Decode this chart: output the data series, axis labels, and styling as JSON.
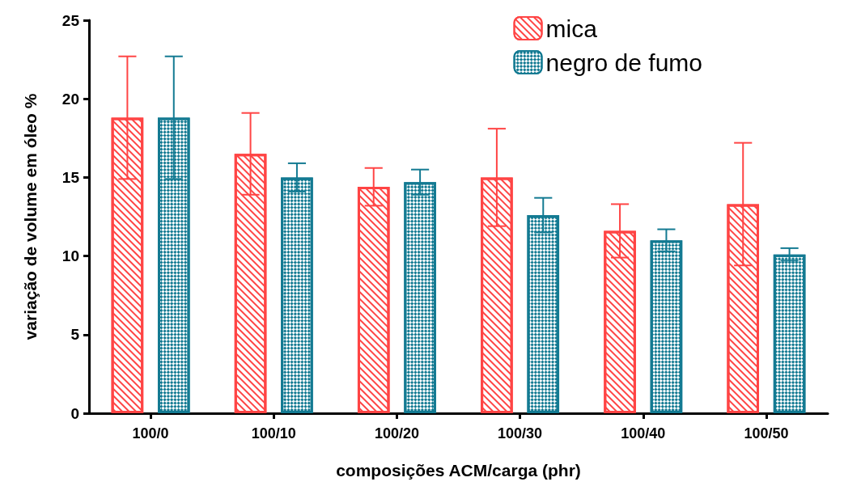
{
  "chart_data": {
    "type": "bar",
    "xlabel": "composições ACM/carga (phr)",
    "ylabel": "variação de volume em óleo %",
    "categories": [
      "100/0",
      "100/10",
      "100/20",
      "100/30",
      "100/40",
      "100/50"
    ],
    "series": [
      {
        "name": "mica",
        "color": "#ff4444",
        "values": [
          18.8,
          16.5,
          14.4,
          15.0,
          11.6,
          13.3
        ],
        "errors": [
          3.9,
          2.6,
          1.2,
          3.1,
          1.7,
          3.9
        ]
      },
      {
        "name": "negro de fumo",
        "color": "#137a92",
        "values": [
          18.8,
          15.0,
          14.7,
          12.6,
          11.0,
          10.1
        ],
        "errors": [
          3.9,
          0.9,
          0.8,
          1.1,
          0.7,
          0.4
        ]
      }
    ],
    "ylim": [
      0,
      25
    ],
    "yticks": [
      0,
      5,
      10,
      15,
      20,
      25
    ],
    "grid": false,
    "legend": "top right"
  }
}
